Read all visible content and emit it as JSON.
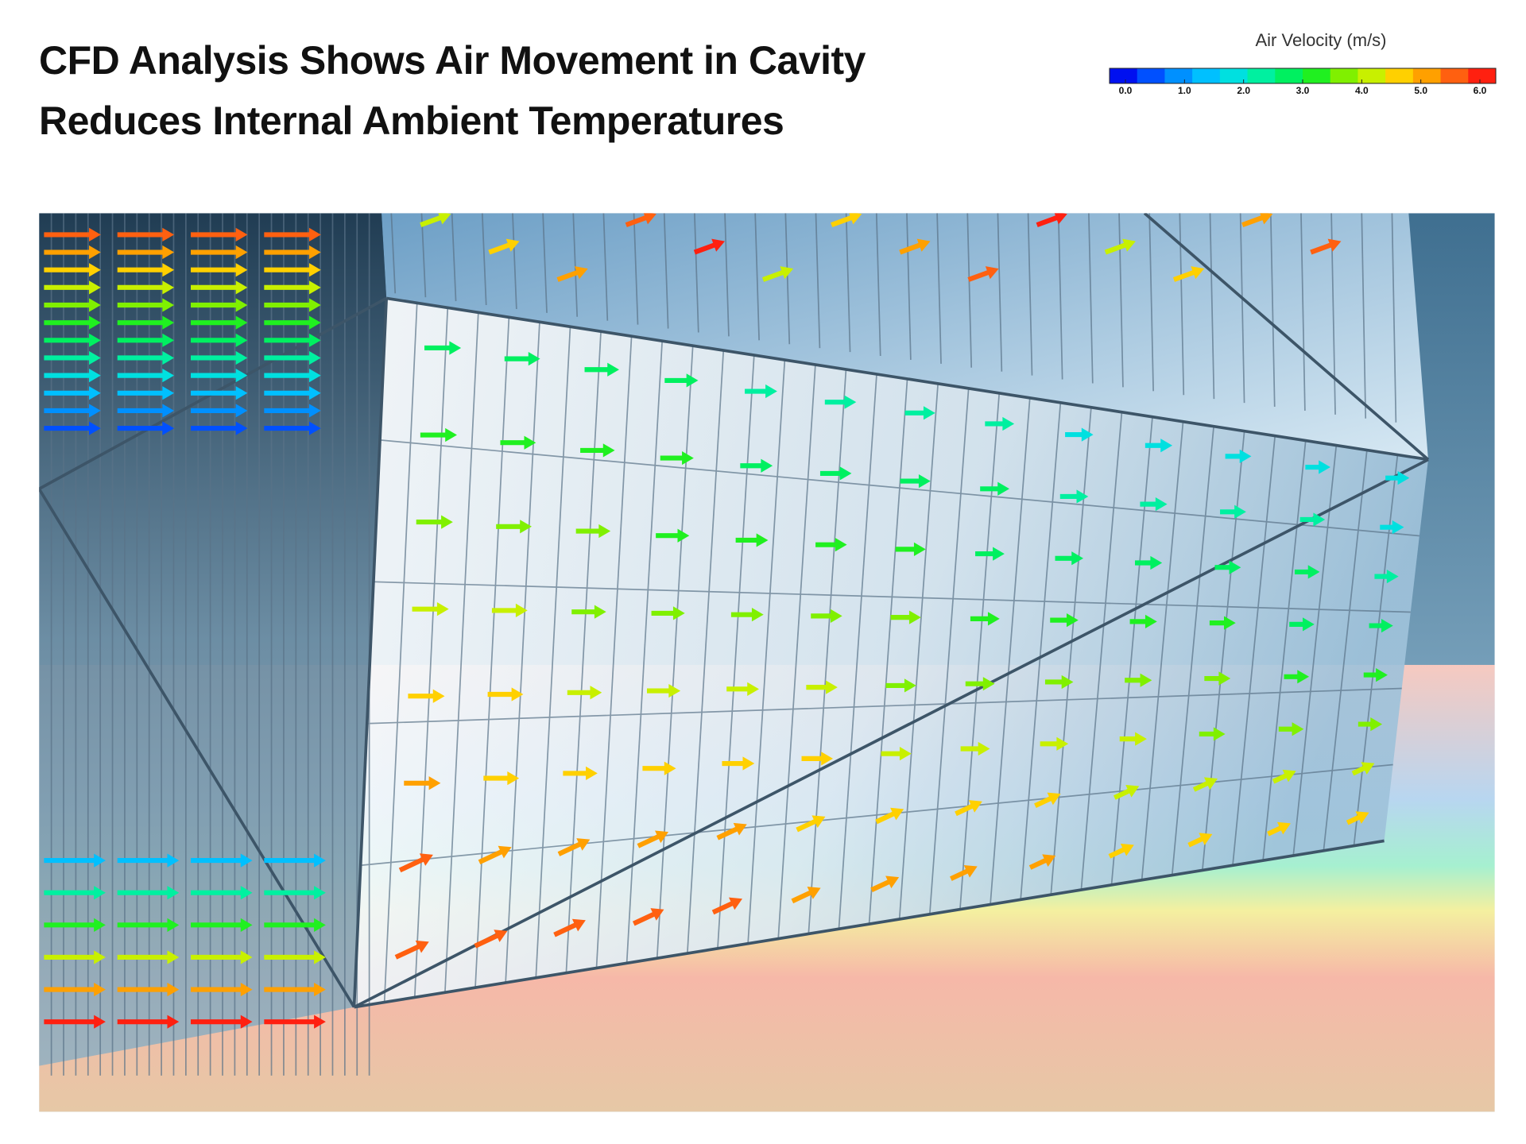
{
  "header": {
    "title_lines": [
      "CFD Analysis Shows Air Movement in Cavity",
      "Reduces Internal Ambient Temperatures"
    ]
  },
  "legend": {
    "title": "Air Velocity (m/s)",
    "ticks": [
      {
        "value": 0,
        "label": "0.0"
      },
      {
        "value": 1,
        "label": "1.0"
      },
      {
        "value": 2,
        "label": "2.0"
      },
      {
        "value": 3,
        "label": "3.0"
      },
      {
        "value": 4,
        "label": "4.0"
      },
      {
        "value": 5,
        "label": "5.0"
      },
      {
        "value": 6,
        "label": "6.0"
      }
    ],
    "colors": [
      "#0010f0",
      "#0050ff",
      "#0090ff",
      "#00c0ff",
      "#00e0e0",
      "#00f0a0",
      "#00f060",
      "#20f020",
      "#80f000",
      "#c8f000",
      "#ffd000",
      "#ffa000",
      "#ff6010",
      "#ff2010"
    ]
  }
}
